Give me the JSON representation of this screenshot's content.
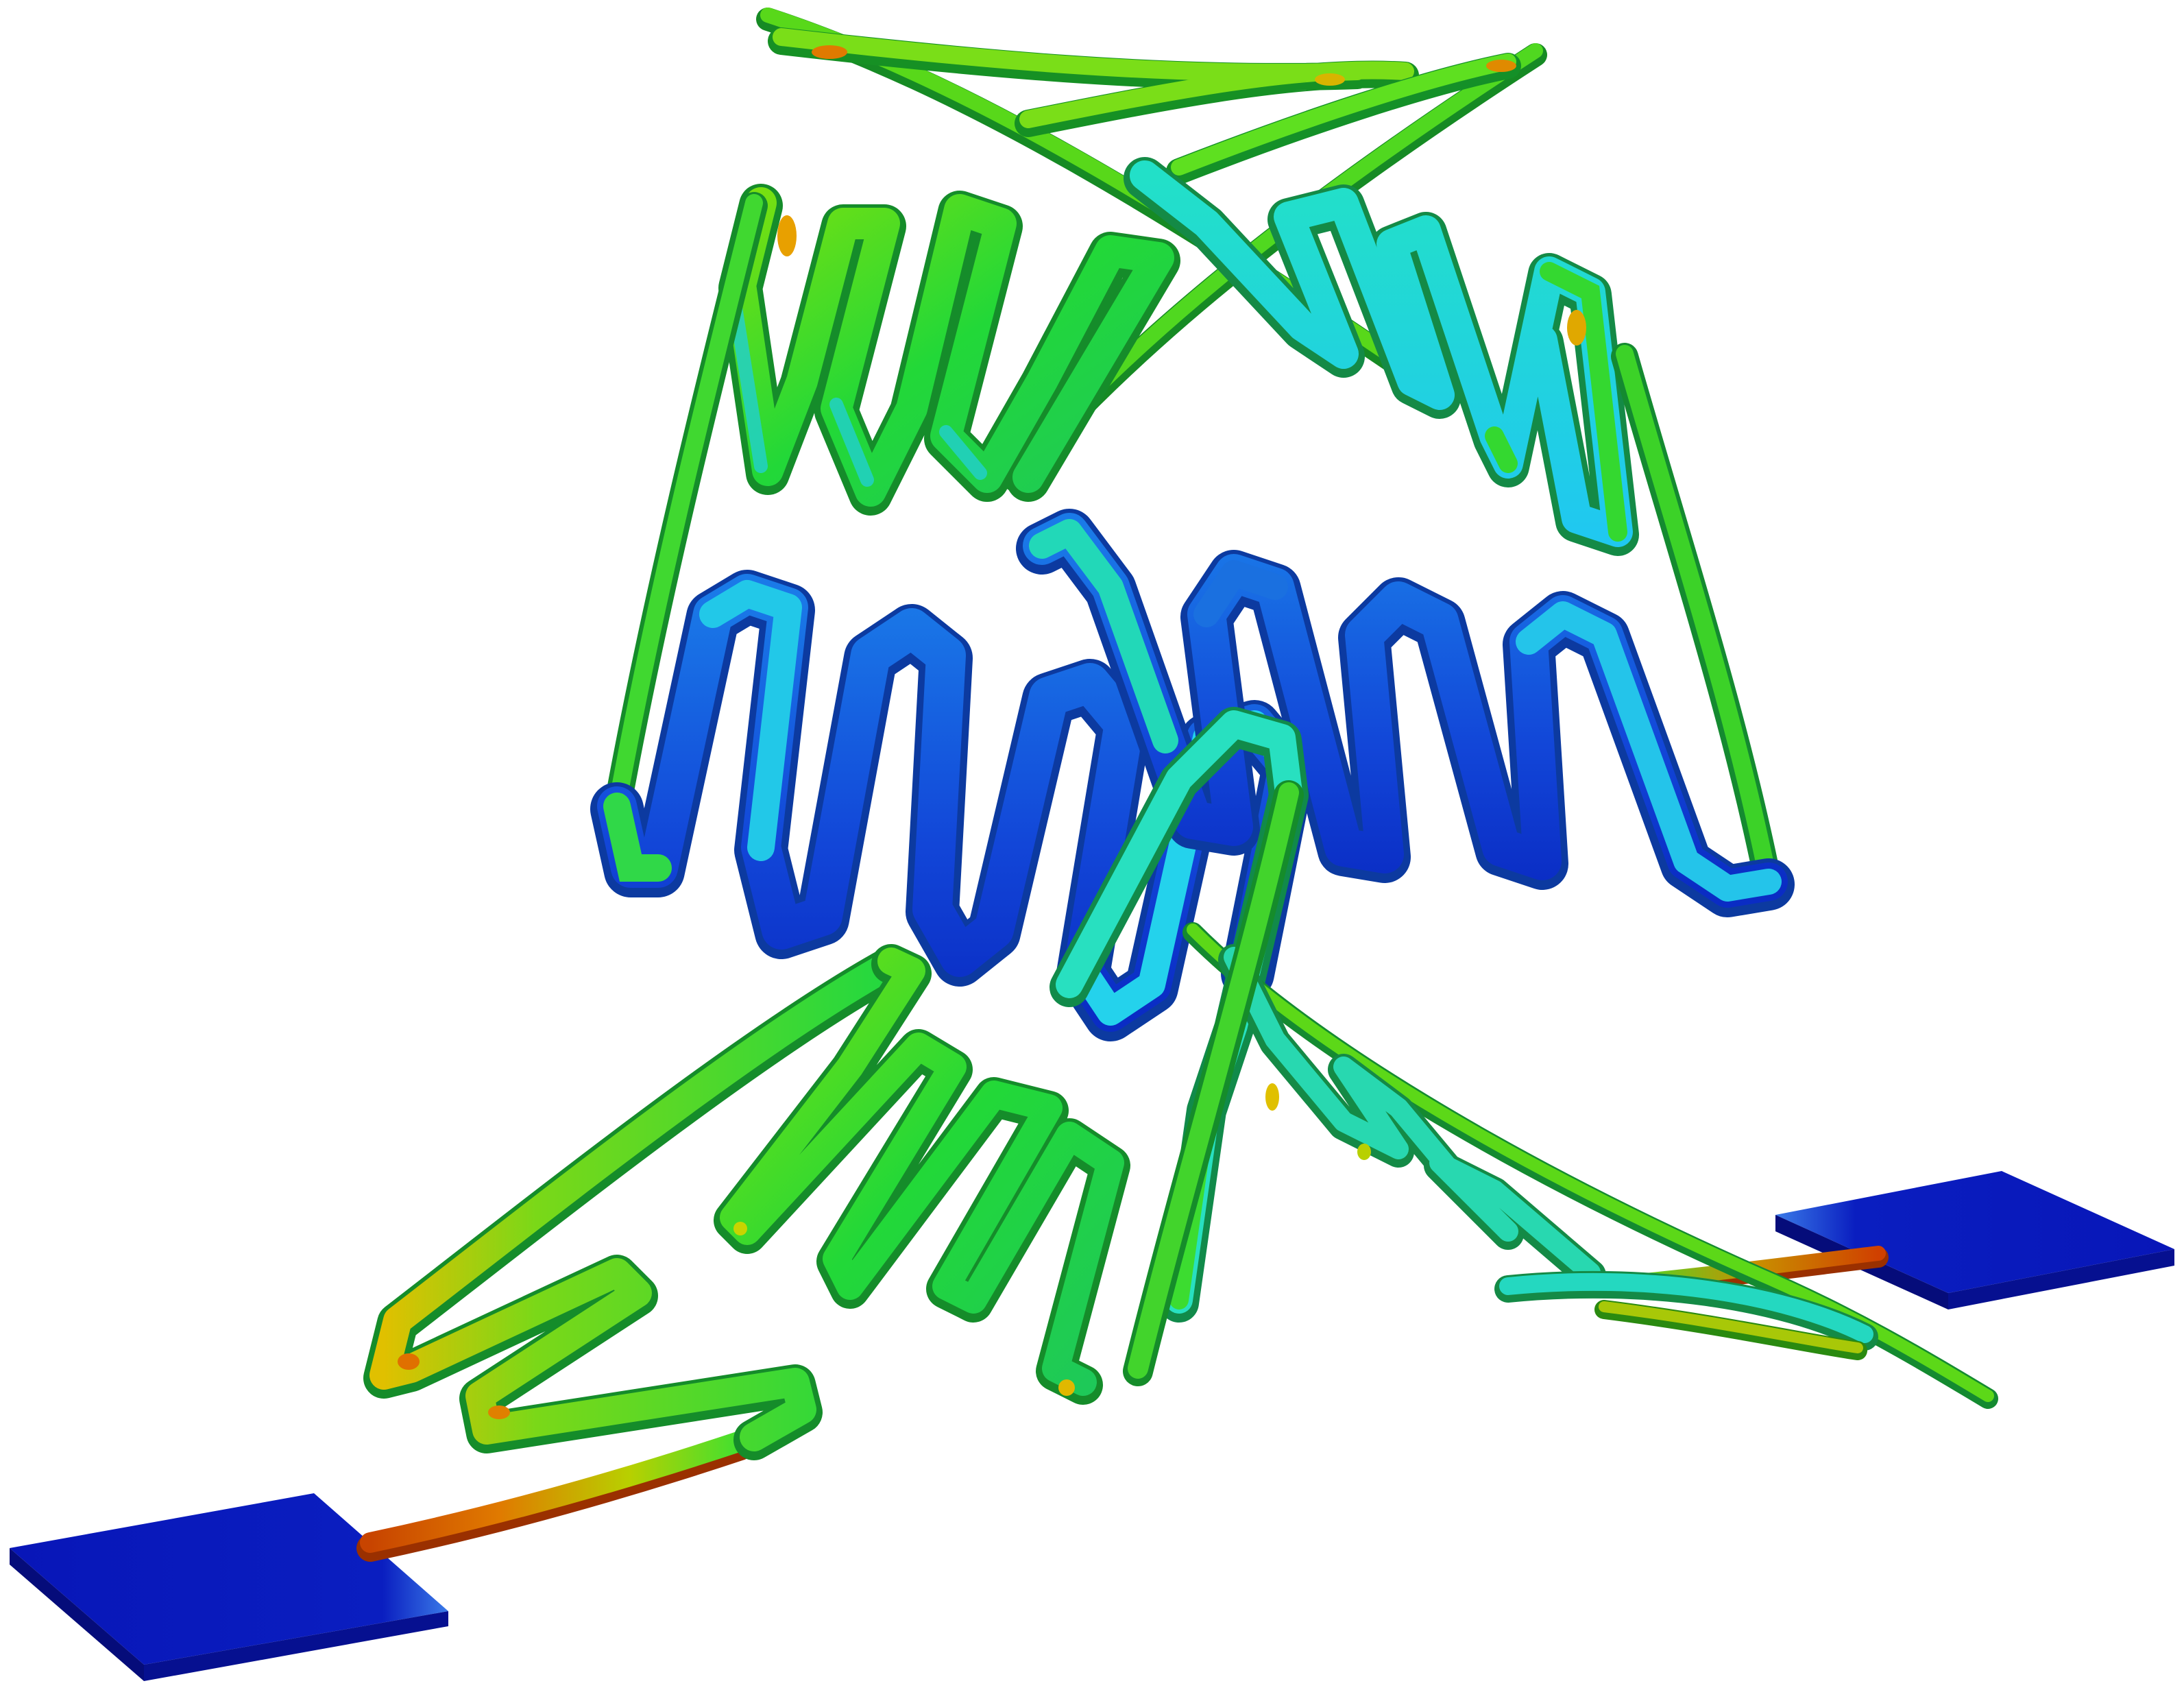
{
  "figure": {
    "kind": "3d-fem-render",
    "subject": "serpentine-spring-structure",
    "background_color": "#ffffff"
  },
  "colormap": [
    "#0a1fb8",
    "#1268e0",
    "#24c6ec",
    "#22ddb0",
    "#20e040",
    "#66e010",
    "#c8d800",
    "#e08a00",
    "#d83a00"
  ],
  "colors": {
    "pad": "#0814b8",
    "pad_dark": "#050c7a",
    "stress_hot": "#d84a00",
    "stress_mid": "#20e040",
    "stress_low": "#1a3ed8"
  }
}
